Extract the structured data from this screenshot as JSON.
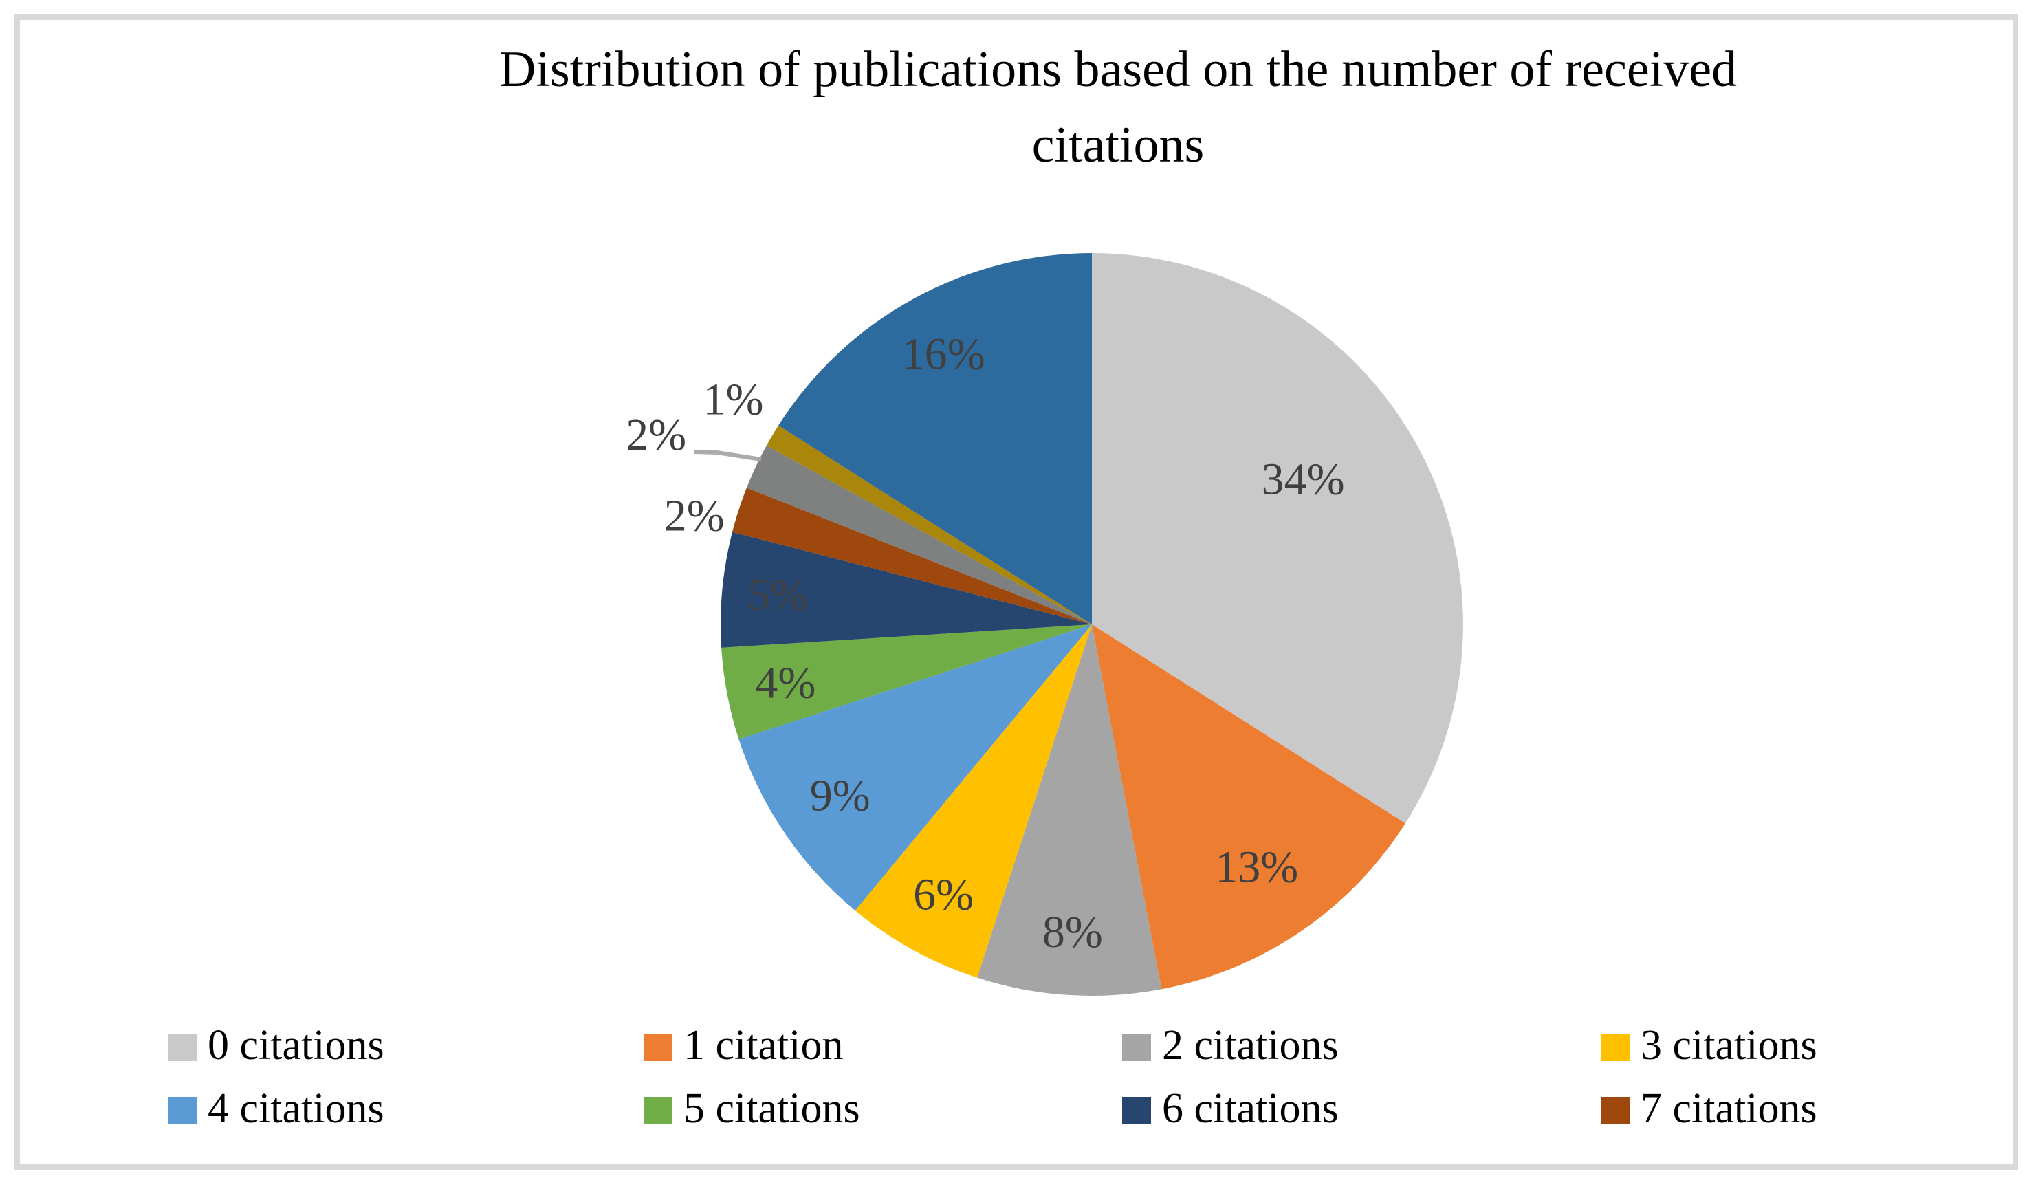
{
  "frame": {
    "border_color": "#D9D9D9"
  },
  "chart_data": {
    "type": "pie",
    "title_lines": [
      "Distribution of publications based on the number of received",
      "citations"
    ],
    "title": "Distribution of publications based on the number of received citations",
    "legend_position": "bottom",
    "start_angle_deg": 0,
    "direction": "clockwise",
    "data_label_style": "percent",
    "data_label_color": "#404040",
    "leader_line_color": "#ABABAB",
    "slices": [
      {
        "legend": "0 citations",
        "value_pct": 34,
        "label": "34%",
        "color": "#C9C9C9"
      },
      {
        "legend": "1 citation",
        "value_pct": 13,
        "label": "13%",
        "color": "#ED7D31"
      },
      {
        "legend": "2 citations",
        "value_pct": 8,
        "label": "8%",
        "color": "#A5A5A5"
      },
      {
        "legend": "3 citations",
        "value_pct": 6,
        "label": "6%",
        "color": "#FFC000"
      },
      {
        "legend": "4 citations",
        "value_pct": 9,
        "label": "9%",
        "color": "#5B9BD5"
      },
      {
        "legend": "5 citations",
        "value_pct": 4,
        "label": "4%",
        "color": "#70AD47"
      },
      {
        "legend": "6 citations",
        "value_pct": 5,
        "label": "5%",
        "color": "#27466F"
      },
      {
        "legend": "7 citations",
        "value_pct": 2,
        "label": "2%",
        "color": "#9E480E"
      },
      {
        "legend": null,
        "value_pct": 2,
        "label": "2%",
        "color": "#7F8080",
        "leader_line": true
      },
      {
        "legend": null,
        "value_pct": 1,
        "label": "1%",
        "color": "#AA860A"
      },
      {
        "legend": null,
        "value_pct": 16,
        "label": "16%",
        "color": "#2D6A9E"
      }
    ]
  }
}
